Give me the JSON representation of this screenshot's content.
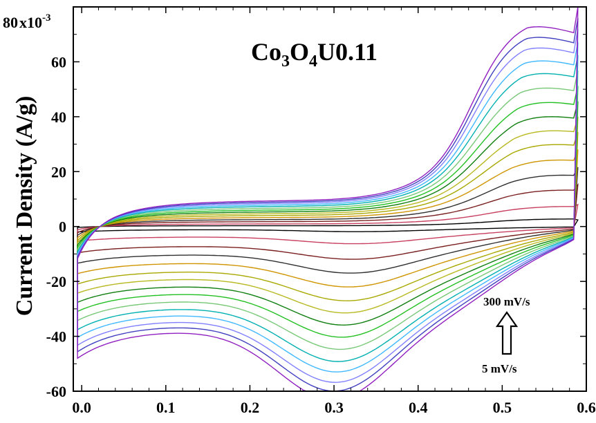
{
  "chart_data": {
    "type": "line",
    "title_parts": [
      "Co",
      "3",
      "O",
      "4",
      "U0.11"
    ],
    "xlabel": "",
    "ylabel": "Current Density (A/g)",
    "y_multiplier_label": "x10",
    "y_multiplier_exp": "-3",
    "xlim": [
      -0.01,
      0.6
    ],
    "ylim": [
      -60,
      80
    ],
    "x_ticks": [
      {
        "v": 0.0,
        "label": "0.0"
      },
      {
        "v": 0.1,
        "label": "0.1"
      },
      {
        "v": 0.2,
        "label": "0.2"
      },
      {
        "v": 0.3,
        "label": "0.3"
      },
      {
        "v": 0.4,
        "label": "0.4"
      },
      {
        "v": 0.5,
        "label": "0.5"
      },
      {
        "v": 0.6,
        "label": "0.6"
      }
    ],
    "y_ticks": [
      {
        "v": -60,
        "label": "-60"
      },
      {
        "v": -40,
        "label": "-40"
      },
      {
        "v": -20,
        "label": "-20"
      },
      {
        "v": 0,
        "label": "0"
      },
      {
        "v": 20,
        "label": "20"
      },
      {
        "v": 40,
        "label": "40"
      },
      {
        "v": 60,
        "label": "60"
      },
      {
        "v": 80,
        "label": "80"
      }
    ],
    "annotation_high": "300 mV/s",
    "annotation_low": "5 mV/s",
    "grid": false,
    "series": [
      {
        "color": "#000000",
        "scale": 0.03,
        "voff": 0.22
      },
      {
        "color": "#c84060",
        "scale": 0.1,
        "voff": 0.32
      },
      {
        "color": "#7a1f1f",
        "scale": 0.19,
        "voff": 0.42
      },
      {
        "color": "#2f2f2f",
        "scale": 0.27,
        "voff": 0.52
      },
      {
        "color": "#cf9400",
        "scale": 0.35,
        "voff": 0.61
      },
      {
        "color": "#a8a800",
        "scale": 0.43,
        "voff": 0.7
      },
      {
        "color": "#b8b820",
        "scale": 0.5,
        "voff": 0.78
      },
      {
        "color": "#0e7f0e",
        "scale": 0.57,
        "voff": 0.86
      },
      {
        "color": "#22c022",
        "scale": 0.64,
        "voff": 0.93
      },
      {
        "color": "#78c878",
        "scale": 0.71,
        "voff": 1.0
      },
      {
        "color": "#00b0b0",
        "scale": 0.78,
        "voff": 1.06
      },
      {
        "color": "#40b8ff",
        "scale": 0.84,
        "voff": 1.12
      },
      {
        "color": "#8080ff",
        "scale": 0.9,
        "voff": 1.18
      },
      {
        "color": "#4040c0",
        "scale": 0.95,
        "voff": 1.22
      },
      {
        "color": "#9020c0",
        "scale": 1.0,
        "voff": 1.25
      }
    ]
  }
}
